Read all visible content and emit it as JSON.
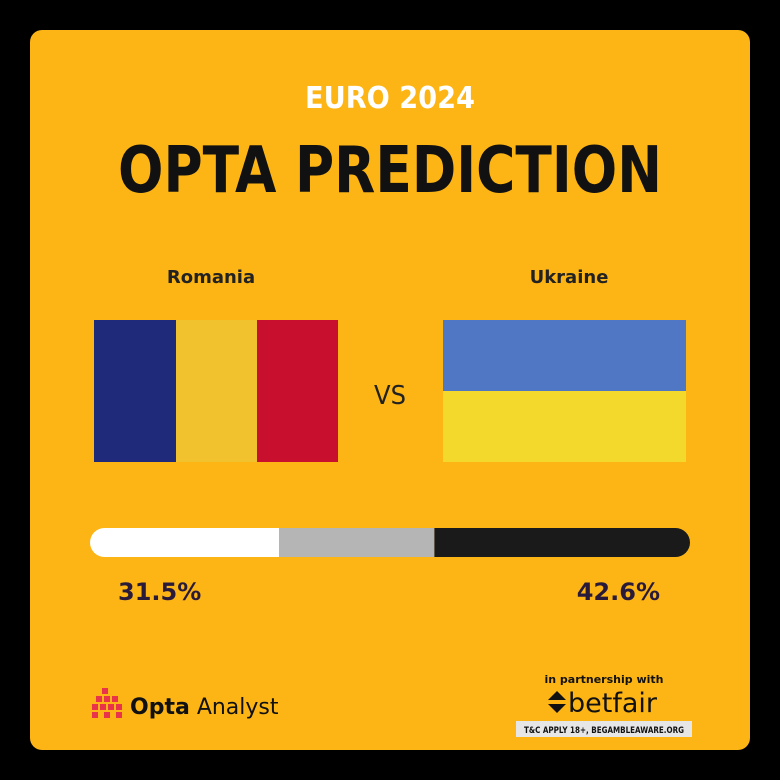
{
  "header": {
    "subtitle": "EURO 2024",
    "title": "OPTA PREDICTION"
  },
  "match": {
    "home": {
      "name": "Romania",
      "win_pct": 31.5,
      "win_label": "31.5%"
    },
    "vs": "VS",
    "draw_pct": 25.9,
    "away": {
      "name": "Ukraine",
      "win_pct": 42.6,
      "win_label": "42.6%"
    }
  },
  "footer": {
    "brand_bold": "Opta",
    "brand_light": "Analyst",
    "partnership": "in partnership with",
    "sponsor": "betfair",
    "disclaimer": "T&C APPLY 18+, BEGAMBLEAWARE.ORG"
  }
}
